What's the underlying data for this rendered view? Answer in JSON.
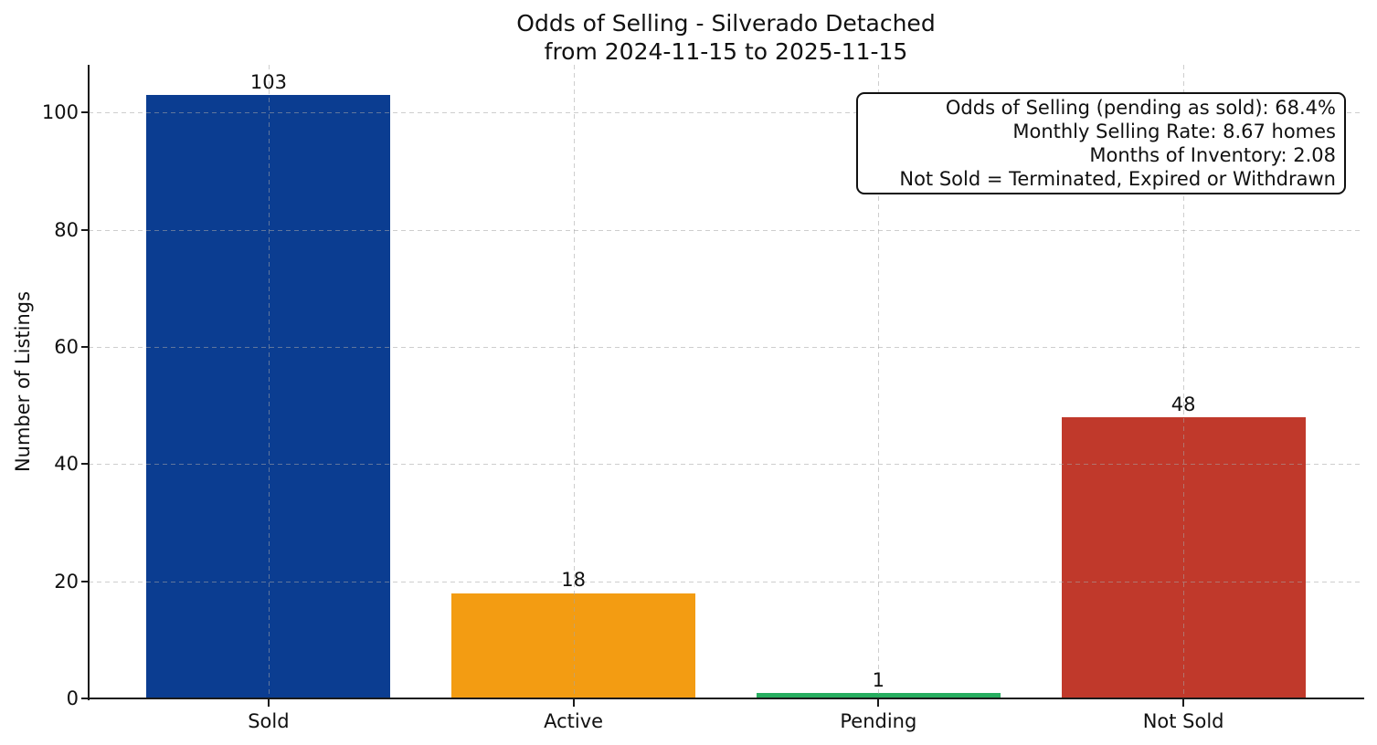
{
  "chart_data": {
    "type": "bar",
    "title": "Odds of Selling - Silverado Detached",
    "subtitle": "from 2024-11-15 to 2025-11-15",
    "categories": [
      "Sold",
      "Active",
      "Pending",
      "Not Sold"
    ],
    "values": [
      103,
      18,
      1,
      48
    ],
    "bar_colors": [
      "#0b3d91",
      "#f39c12",
      "#27ae60",
      "#c0392b"
    ],
    "xlabel": "",
    "ylabel": "Number of Listings",
    "ylim": [
      0,
      108.15
    ],
    "yticks": [
      0,
      20,
      40,
      60,
      80,
      100
    ],
    "bar_width_fraction": 0.8,
    "x_margin": 0.59,
    "grid": true,
    "grid_style": "dashed",
    "legend_position": "none",
    "annotation": {
      "lines": [
        "Odds of Selling (pending as sold): 68.4%",
        "Monthly Selling Rate: 8.67 homes",
        "Months of Inventory: 2.08",
        "Not Sold = Terminated, Expired or Withdrawn"
      ]
    }
  }
}
